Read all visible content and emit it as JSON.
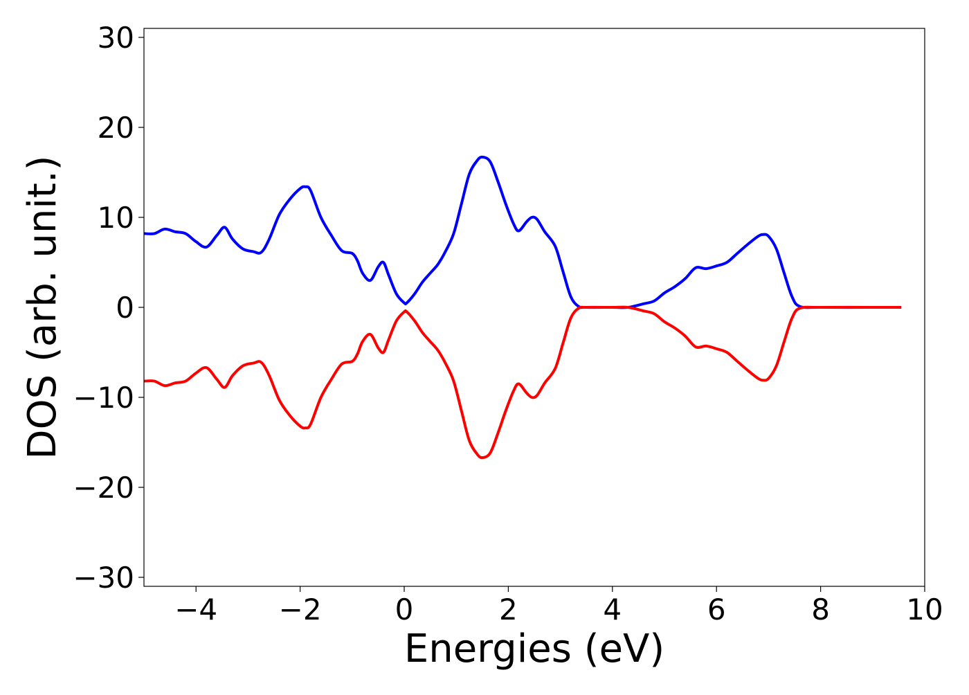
{
  "chart_data": {
    "type": "line",
    "title": "",
    "xlabel": "Energies (eV)",
    "ylabel": "DOS (arb. unit.)",
    "xlim": [
      -5,
      10
    ],
    "ylim": [
      -31,
      31
    ],
    "xticks": [
      -4,
      -2,
      0,
      2,
      4,
      6,
      8,
      10
    ],
    "xtick_labels": [
      "−4",
      "−2",
      "0",
      "2",
      "4",
      "6",
      "8",
      "10"
    ],
    "yticks": [
      -30,
      -20,
      -10,
      0,
      10,
      20,
      30
    ],
    "ytick_labels": [
      "−30",
      "−20",
      "−10",
      "0",
      "10",
      "20",
      "30"
    ],
    "grid": false,
    "legend": "none",
    "series": [
      {
        "color": "#0000ff",
        "x": [
          -5.0,
          -4.8,
          -4.6,
          -4.4,
          -4.2,
          -4.0,
          -3.8,
          -3.6,
          -3.45,
          -3.3,
          -3.1,
          -2.9,
          -2.75,
          -2.6,
          -2.4,
          -2.2,
          -2.0,
          -1.9,
          -1.8,
          -1.6,
          -1.4,
          -1.2,
          -1.0,
          -0.9,
          -0.8,
          -0.65,
          -0.5,
          -0.4,
          -0.3,
          -0.15,
          0.0,
          0.05,
          0.2,
          0.35,
          0.5,
          0.65,
          0.8,
          0.95,
          1.1,
          1.25,
          1.4,
          1.5,
          1.65,
          1.8,
          1.95,
          2.1,
          2.2,
          2.35,
          2.45,
          2.55,
          2.7,
          2.9,
          3.05,
          3.2,
          3.35,
          3.5,
          4.0,
          4.3,
          4.6,
          4.8,
          5.0,
          5.2,
          5.4,
          5.6,
          5.8,
          6.0,
          6.2,
          6.4,
          6.6,
          6.8,
          6.9,
          7.0,
          7.15,
          7.3,
          7.45,
          7.6,
          8.0,
          9.0,
          9.55
        ],
        "y": [
          8.2,
          8.2,
          8.7,
          8.4,
          8.2,
          7.3,
          6.7,
          8.0,
          8.9,
          7.6,
          6.5,
          6.2,
          6.1,
          7.5,
          10.3,
          12.0,
          13.2,
          13.4,
          13.0,
          10.0,
          8.0,
          6.3,
          6.0,
          5.2,
          3.8,
          3.0,
          4.5,
          5.0,
          3.6,
          1.5,
          0.5,
          0.5,
          1.5,
          2.8,
          3.8,
          4.8,
          6.3,
          8.2,
          11.5,
          14.8,
          16.3,
          16.7,
          16.2,
          14.0,
          11.5,
          9.3,
          8.5,
          9.5,
          10.0,
          9.8,
          8.4,
          6.8,
          4.0,
          1.2,
          0.1,
          0.0,
          0.0,
          0.0,
          0.4,
          0.7,
          1.6,
          2.3,
          3.2,
          4.4,
          4.3,
          4.6,
          5.0,
          6.0,
          7.0,
          7.9,
          8.1,
          7.9,
          6.5,
          3.8,
          1.2,
          0.1,
          0.0,
          0.0,
          0.0
        ]
      },
      {
        "color": "#ff0000",
        "x": [
          -5.0,
          -4.8,
          -4.6,
          -4.4,
          -4.2,
          -4.0,
          -3.8,
          -3.6,
          -3.45,
          -3.3,
          -3.1,
          -2.9,
          -2.75,
          -2.6,
          -2.4,
          -2.2,
          -2.0,
          -1.9,
          -1.8,
          -1.6,
          -1.4,
          -1.2,
          -1.0,
          -0.9,
          -0.8,
          -0.65,
          -0.5,
          -0.4,
          -0.3,
          -0.15,
          0.0,
          0.05,
          0.2,
          0.35,
          0.5,
          0.65,
          0.8,
          0.95,
          1.1,
          1.25,
          1.4,
          1.5,
          1.65,
          1.8,
          1.95,
          2.1,
          2.2,
          2.35,
          2.45,
          2.55,
          2.7,
          2.9,
          3.05,
          3.2,
          3.35,
          3.5,
          4.0,
          4.3,
          4.6,
          4.8,
          5.0,
          5.2,
          5.4,
          5.6,
          5.8,
          6.0,
          6.2,
          6.4,
          6.6,
          6.8,
          6.9,
          7.0,
          7.15,
          7.3,
          7.45,
          7.6,
          8.0,
          9.0,
          9.55
        ],
        "y": [
          -8.2,
          -8.2,
          -8.7,
          -8.4,
          -8.2,
          -7.3,
          -6.7,
          -8.0,
          -8.9,
          -7.6,
          -6.5,
          -6.2,
          -6.1,
          -7.5,
          -10.3,
          -12.0,
          -13.2,
          -13.4,
          -13.0,
          -10.0,
          -8.0,
          -6.3,
          -6.0,
          -5.2,
          -3.8,
          -3.0,
          -4.5,
          -5.0,
          -3.6,
          -1.5,
          -0.5,
          -0.5,
          -1.5,
          -2.8,
          -3.8,
          -4.8,
          -6.3,
          -8.2,
          -11.5,
          -14.8,
          -16.3,
          -16.7,
          -16.2,
          -14.0,
          -11.5,
          -9.3,
          -8.5,
          -9.5,
          -10.0,
          -9.8,
          -8.4,
          -6.8,
          -4.0,
          -1.2,
          -0.1,
          0.0,
          0.0,
          0.0,
          -0.4,
          -0.7,
          -1.6,
          -2.3,
          -3.2,
          -4.4,
          -4.3,
          -4.6,
          -5.0,
          -6.0,
          -7.0,
          -7.9,
          -8.1,
          -7.9,
          -6.5,
          -3.8,
          -1.2,
          -0.1,
          0.0,
          0.0,
          0.0
        ]
      }
    ]
  }
}
